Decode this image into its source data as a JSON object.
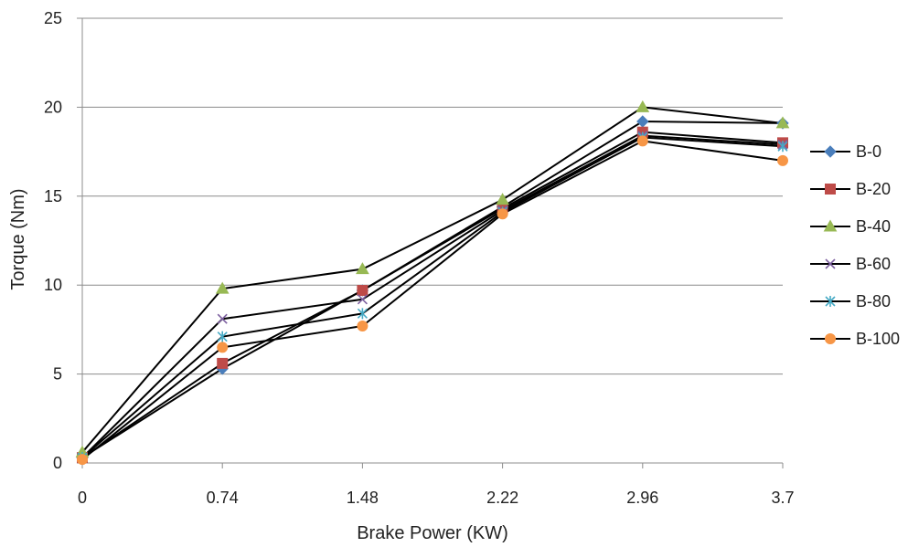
{
  "chart_data": {
    "type": "line",
    "xlabel": "Brake Power (KW)",
    "ylabel": "Torque (Nm)",
    "x": [
      "0",
      "0.74",
      "1.48",
      "2.22",
      "2.96",
      "3.7"
    ],
    "ylim": [
      0,
      25
    ],
    "yticks": [
      "0",
      "5",
      "10",
      "15",
      "20",
      "25"
    ],
    "grid": "horizontal",
    "legend_position": "right",
    "series": [
      {
        "name": "B-0",
        "marker": "diamond",
        "color": "#4a7ebb",
        "values": [
          0.3,
          5.3,
          9.7,
          14.4,
          19.2,
          19.1
        ]
      },
      {
        "name": "B-20",
        "marker": "square",
        "color": "#be4b48",
        "values": [
          0.3,
          5.6,
          9.7,
          14.3,
          18.6,
          18.0
        ]
      },
      {
        "name": "B-40",
        "marker": "triangle",
        "color": "#98b954",
        "values": [
          0.6,
          9.8,
          10.9,
          14.8,
          20.0,
          19.1
        ]
      },
      {
        "name": "B-60",
        "marker": "x",
        "color": "#7d60a0",
        "values": [
          0.3,
          8.1,
          9.2,
          14.2,
          18.4,
          17.9
        ]
      },
      {
        "name": "B-80",
        "marker": "star",
        "color": "#46aac5",
        "values": [
          0.3,
          7.1,
          8.4,
          14.1,
          18.3,
          17.8
        ]
      },
      {
        "name": "B-100",
        "marker": "circle",
        "color": "#f79646",
        "values": [
          0.2,
          6.5,
          7.7,
          14.0,
          18.1,
          17.0
        ]
      }
    ]
  }
}
